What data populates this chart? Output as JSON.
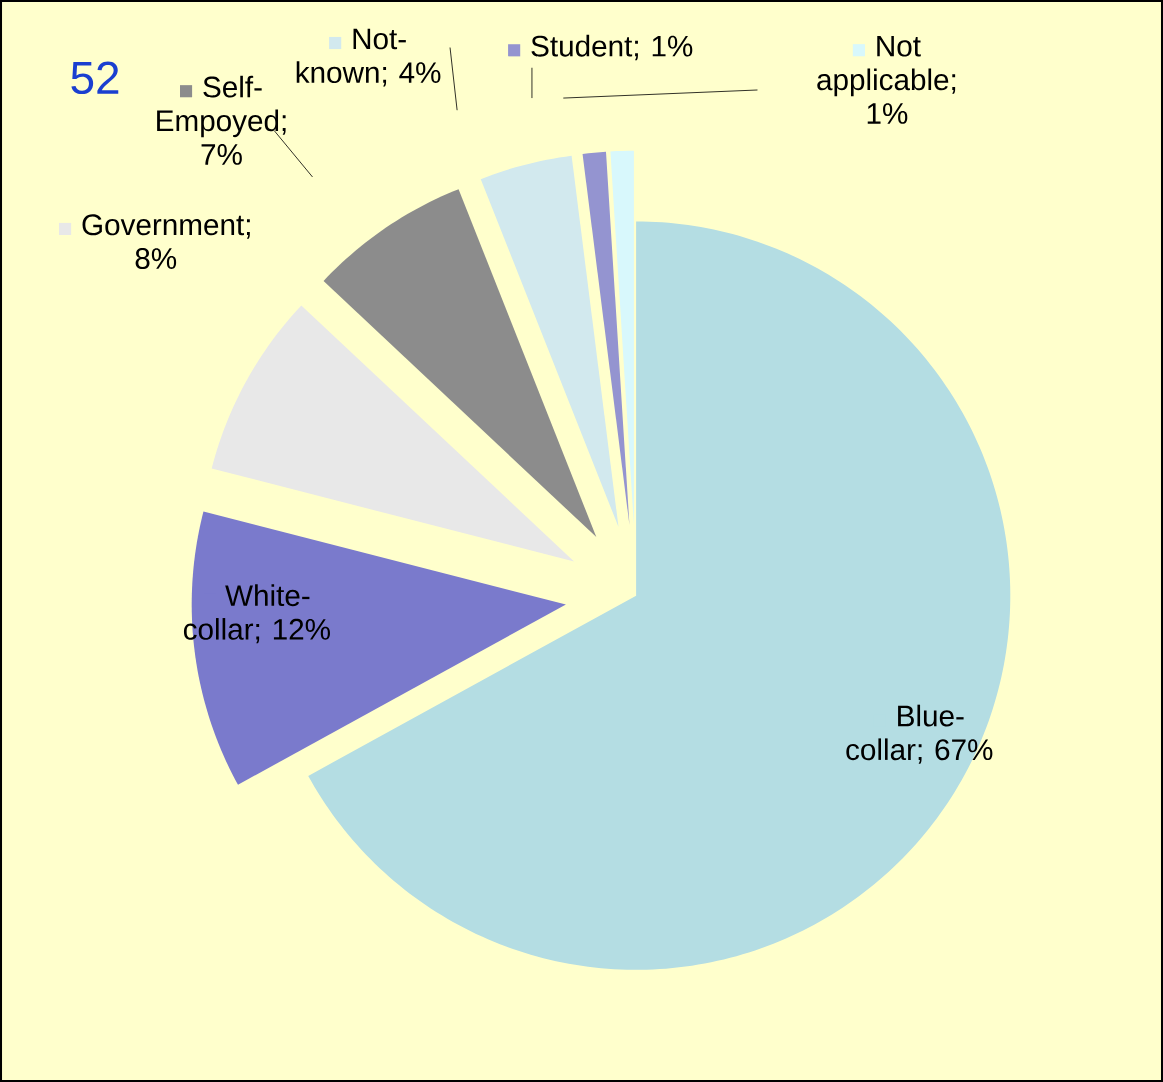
{
  "chart_data": {
    "type": "pie",
    "categories": [
      "Blue-collar; 67%",
      "White-collar; 12%",
      "Government; 8%",
      "Self-Empoyed; 7%",
      "Not-known; 4%",
      "Student; 1%",
      "Not applicable; 1%"
    ],
    "values": [
      67,
      12,
      8,
      7,
      4,
      1,
      1
    ],
    "legend": "top",
    "colors": [
      "#b4dde3",
      "#7a7acc",
      "#e8e8e8",
      "#8c8c8c",
      "#d2e9ee",
      "#9494d0",
      "#d8f8fc"
    ],
    "annotations": [
      "52"
    ]
  }
}
